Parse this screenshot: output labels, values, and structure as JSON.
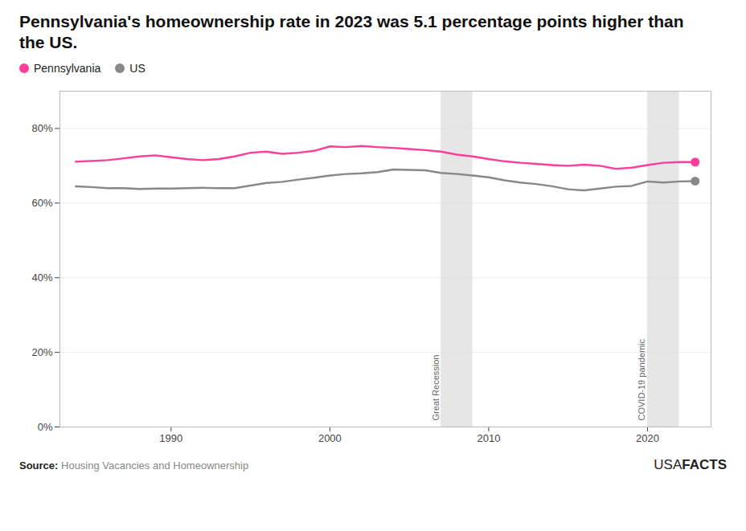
{
  "chart_data": {
    "type": "line",
    "title": "Pennsylvania's homeownership rate in 2023 was 5.1 percentage points higher than the US.",
    "x": [
      1984,
      1985,
      1986,
      1987,
      1988,
      1989,
      1990,
      1991,
      1992,
      1993,
      1994,
      1995,
      1996,
      1997,
      1998,
      1999,
      2000,
      2001,
      2002,
      2003,
      2004,
      2005,
      2006,
      2007,
      2008,
      2009,
      2010,
      2011,
      2012,
      2013,
      2014,
      2015,
      2016,
      2017,
      2018,
      2019,
      2020,
      2021,
      2022,
      2023
    ],
    "series": [
      {
        "name": "Pennsylvania",
        "color": "#FF3D9A",
        "values": [
          71.1,
          71.3,
          71.5,
          72.0,
          72.5,
          72.8,
          72.3,
          71.8,
          71.5,
          71.8,
          72.5,
          73.5,
          73.8,
          73.2,
          73.5,
          74.0,
          75.2,
          75.0,
          75.3,
          75.0,
          74.8,
          74.5,
          74.2,
          73.8,
          73.0,
          72.5,
          71.8,
          71.2,
          70.8,
          70.5,
          70.2,
          70.0,
          70.3,
          70.0,
          69.2,
          69.5,
          70.2,
          70.8,
          71.0,
          71.0
        ]
      },
      {
        "name": "US",
        "color": "#888888",
        "values": [
          64.5,
          64.3,
          64.0,
          64.0,
          63.8,
          63.9,
          63.9,
          64.0,
          64.1,
          64.0,
          64.0,
          64.7,
          65.4,
          65.7,
          66.3,
          66.8,
          67.4,
          67.8,
          68.0,
          68.3,
          69.0,
          68.9,
          68.8,
          68.1,
          67.8,
          67.4,
          66.9,
          66.1,
          65.5,
          65.1,
          64.5,
          63.7,
          63.4,
          63.9,
          64.4,
          64.6,
          65.8,
          65.5,
          65.8,
          65.9
        ]
      }
    ],
    "xlim": [
      1983,
      2024
    ],
    "xticks": [
      1990,
      2000,
      2010,
      2020
    ],
    "ylim": [
      0,
      90
    ],
    "yticks": [
      {
        "value": 0,
        "label": "0%"
      },
      {
        "value": 20,
        "label": "20%"
      },
      {
        "value": 40,
        "label": "40%"
      },
      {
        "value": 60,
        "label": "60%"
      },
      {
        "value": 80,
        "label": "80%"
      }
    ],
    "grid": true,
    "legend": "top",
    "shaded_regions": [
      {
        "label": "Great Recession",
        "start": 2007,
        "end": 2009,
        "color": "#DCDCDC"
      },
      {
        "label": "COVID-19 pandemic",
        "start": 2020,
        "end": 2022,
        "color": "#DCDCDC"
      }
    ],
    "source_label": "Source:",
    "source": "Housing Vacancies and Homeownership",
    "branding": [
      "USA",
      "FACTS"
    ]
  }
}
